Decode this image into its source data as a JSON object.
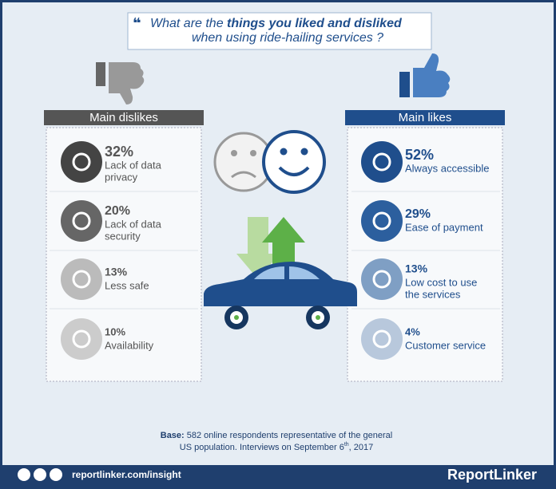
{
  "title": {
    "start": "What are the ",
    "bold": "things you liked and disliked",
    "line2": "when using ride-hailing services ?"
  },
  "dislikes": {
    "header": "Main dislikes",
    "items": [
      {
        "percent": "32%",
        "label": [
          "Lack of data",
          "privacy"
        ]
      },
      {
        "percent": "20%",
        "label": [
          "Lack of data",
          "security"
        ]
      },
      {
        "percent": "13%",
        "label": [
          "Less safe"
        ]
      },
      {
        "percent": "10%",
        "label": [
          "Availability"
        ]
      }
    ]
  },
  "likes": {
    "header": "Main likes",
    "items": [
      {
        "percent": "52%",
        "label": [
          "Always accessible"
        ]
      },
      {
        "percent": "29%",
        "label": [
          "Ease of payment"
        ]
      },
      {
        "percent": "13%",
        "label": [
          "Low cost to use",
          "the services"
        ]
      },
      {
        "percent": "4%",
        "label": [
          "Customer service"
        ]
      }
    ]
  },
  "base": {
    "head": "Base:",
    "line1": " 582 online respondents representative of the general",
    "line2": "US population. Interviews on September 6",
    "sup": "th",
    "line2_end": ", 2017"
  },
  "footer": {
    "url": "reportlinker.com/insight",
    "brand": "ReportLinker"
  }
}
